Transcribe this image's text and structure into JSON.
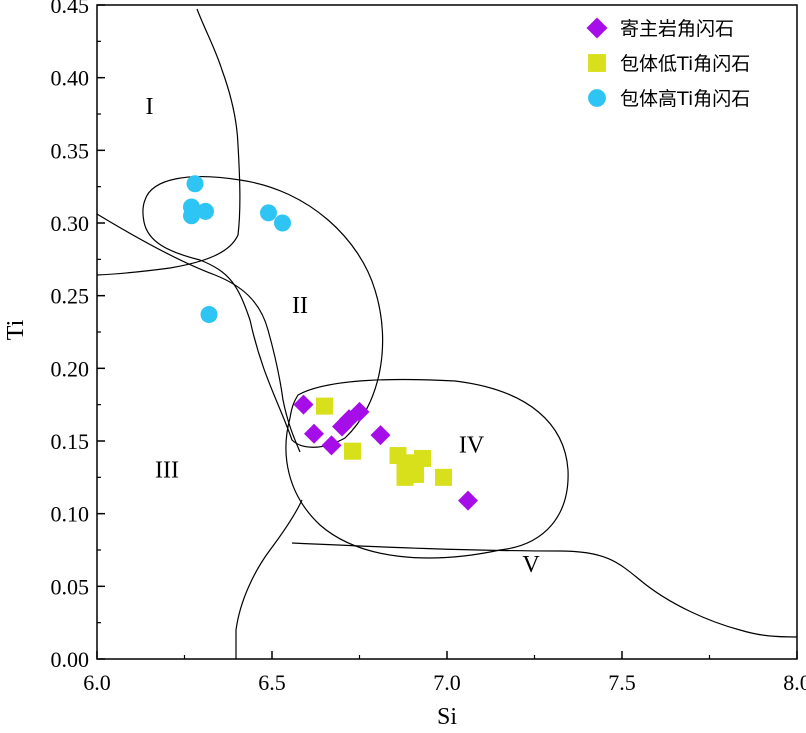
{
  "chart_data": {
    "type": "scatter",
    "title": "",
    "xlabel": "Si",
    "ylabel": "Ti",
    "xlim": [
      6.0,
      8.0
    ],
    "ylim": [
      0.0,
      0.45
    ],
    "x_ticks": [
      "6.0",
      "6.5",
      "7.0",
      "7.5",
      "8.0"
    ],
    "y_ticks": [
      "0.00",
      "0.05",
      "0.10",
      "0.15",
      "0.20",
      "0.25",
      "0.30",
      "0.35",
      "0.40",
      "0.45"
    ],
    "grid": false,
    "legend_position": "top-right",
    "region_labels": [
      {
        "text": "I",
        "x": 6.15,
        "y": 0.375
      },
      {
        "text": "II",
        "x": 6.58,
        "y": 0.238
      },
      {
        "text": "III",
        "x": 6.2,
        "y": 0.125
      },
      {
        "text": "IV",
        "x": 7.07,
        "y": 0.142
      },
      {
        "text": "V",
        "x": 7.24,
        "y": 0.06
      }
    ],
    "series": [
      {
        "name": "寄主岩角闪石",
        "marker": "diamond",
        "color": "#a50ee8",
        "points": [
          [
            6.59,
            0.175
          ],
          [
            6.62,
            0.155
          ],
          [
            6.67,
            0.147
          ],
          [
            6.7,
            0.16
          ],
          [
            6.72,
            0.165
          ],
          [
            6.75,
            0.17
          ],
          [
            6.81,
            0.154
          ],
          [
            7.06,
            0.109
          ]
        ]
      },
      {
        "name": "包体低Ti角闪石",
        "marker": "square",
        "color": "#d7e01a",
        "points": [
          [
            6.65,
            0.174
          ],
          [
            6.73,
            0.143
          ],
          [
            6.86,
            0.14
          ],
          [
            6.88,
            0.13
          ],
          [
            6.88,
            0.125
          ],
          [
            6.9,
            0.132
          ],
          [
            6.9,
            0.135
          ],
          [
            6.91,
            0.127
          ],
          [
            6.93,
            0.138
          ],
          [
            6.99,
            0.125
          ]
        ]
      },
      {
        "name": "包体高Ti角闪石",
        "marker": "circle",
        "color": "#2ec4f3",
        "points": [
          [
            6.28,
            0.327
          ],
          [
            6.27,
            0.311
          ],
          [
            6.27,
            0.305
          ],
          [
            6.31,
            0.308
          ],
          [
            6.49,
            0.307
          ],
          [
            6.53,
            0.3
          ],
          [
            6.32,
            0.237
          ]
        ]
      }
    ]
  }
}
